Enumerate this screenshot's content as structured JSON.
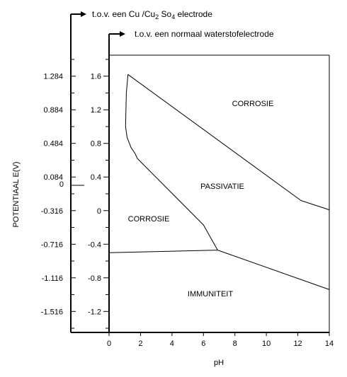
{
  "diagram": {
    "type": "pourbaix",
    "axes": {
      "top_label_prefix": "t.o.v. een Cu /Cu",
      "top_label_sub1": "2",
      "top_label_mid": " So",
      "top_label_sub2": "4",
      "top_label_suffix": " electrode",
      "mid_label": "t.o.v. een normaal waterstofelectrode",
      "y_label": "POTENTIAAL E(V)",
      "x_label": "pH"
    },
    "x_ticks": [
      "0",
      "2",
      "4",
      "6",
      "8",
      "10",
      "12",
      "14"
    ],
    "she_ticks": [
      "1.6",
      "1.2",
      "0.8",
      "0.4",
      "0",
      "-0.4",
      "-0.8",
      "-1.2"
    ],
    "cu_ticks": [
      "1.284",
      "0.884",
      "0.484",
      "0.084",
      "0",
      "-0.316",
      "-0.716",
      "-1.116",
      "-1.516"
    ],
    "regions": {
      "corrosie_upper": "CORROSIE",
      "passivatie": "PASSIVATIE",
      "corrosie_lower": "CORROSIE",
      "immuniteit": "IMMUNITEIT"
    },
    "xlim": [
      0,
      14
    ],
    "ylim_she": [
      -1.45,
      1.85
    ],
    "boundaries": {
      "upper_passivation": [
        [
          1.2,
          1.62
        ],
        [
          12.2,
          0.12
        ],
        [
          14,
          0.01
        ]
      ],
      "left_passivation": [
        [
          1.2,
          1.62
        ],
        [
          1.1,
          1.4
        ],
        [
          1.05,
          1.0
        ],
        [
          1.15,
          0.87
        ],
        [
          1.4,
          0.75
        ],
        [
          1.65,
          0.68
        ],
        [
          1.8,
          0.62
        ],
        [
          6.0,
          -0.17
        ],
        [
          6.9,
          -0.47
        ]
      ],
      "immunity_left": [
        [
          0,
          -0.5
        ],
        [
          6.9,
          -0.47
        ]
      ],
      "immunity_right": [
        [
          6.9,
          -0.47
        ],
        [
          14,
          -0.94
        ]
      ]
    }
  }
}
